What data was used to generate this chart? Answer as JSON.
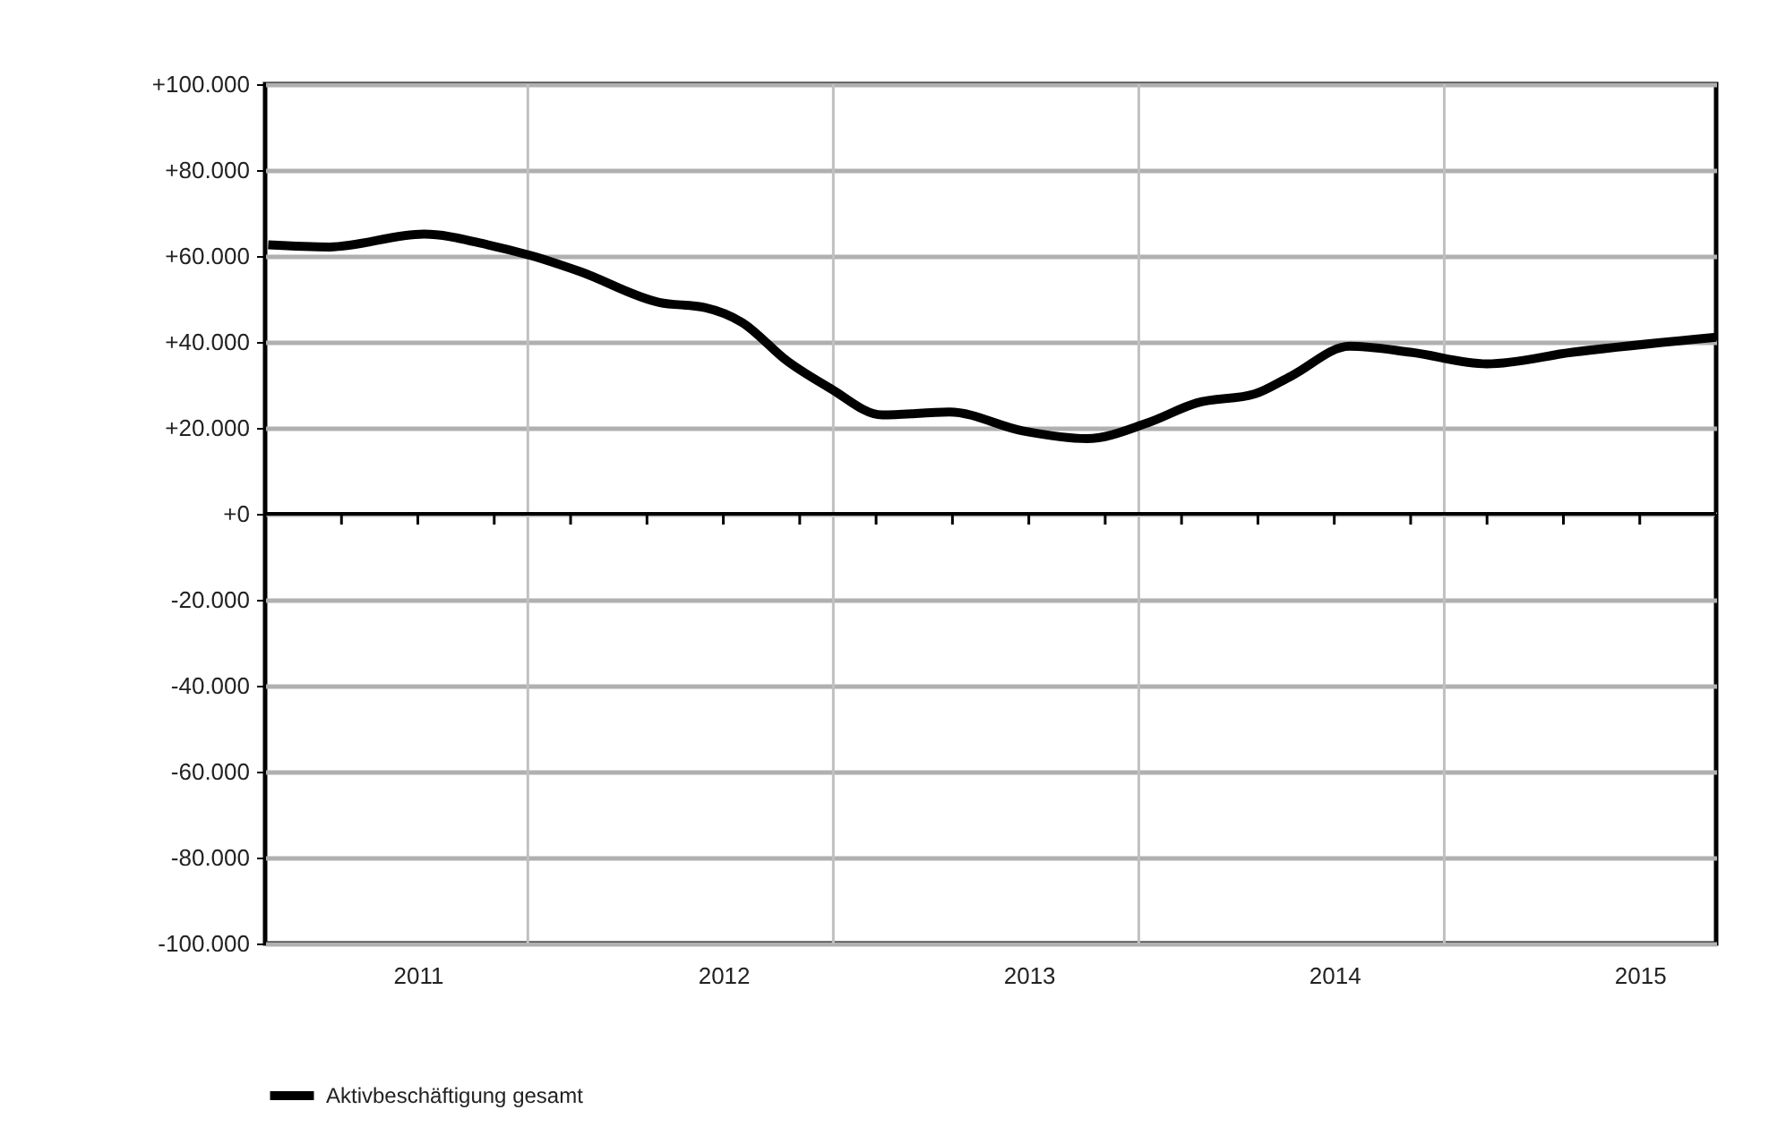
{
  "chart_data": {
    "type": "line",
    "x": [
      2011.01,
      2011.21,
      2011.52,
      2011.73,
      2011.87,
      2012.03,
      2012.29,
      2012.44,
      2012.56,
      2012.71,
      2012.85,
      2013.02,
      2013.24,
      2013.48,
      2013.69,
      2013.89,
      2014.05,
      2014.24,
      2014.36,
      2014.55,
      2014.75,
      2015.0,
      2015.28,
      2015.75
    ],
    "series": [
      {
        "name": "Aktivbeschäftigung gesamt",
        "color": "#000000",
        "values": [
          62600,
          62100,
          65100,
          62600,
          60100,
          56400,
          49200,
          48000,
          44600,
          35500,
          29200,
          23000,
          23700,
          19300,
          17500,
          21200,
          25800,
          27900,
          32100,
          39000,
          37600,
          34900,
          37600,
          41100
        ]
      }
    ],
    "xlim": [
      2011,
      2015.75
    ],
    "xticks": [
      {
        "value": 2011,
        "label": null
      },
      {
        "value": 2011.25,
        "label": null
      },
      {
        "value": 2011.5,
        "label": "2011"
      },
      {
        "value": 2011.75,
        "label": null
      },
      {
        "value": 2012,
        "label": null
      },
      {
        "value": 2012.25,
        "label": null
      },
      {
        "value": 2012.5,
        "label": "2012"
      },
      {
        "value": 2012.75,
        "label": null
      },
      {
        "value": 2013,
        "label": null
      },
      {
        "value": 2013.25,
        "label": null
      },
      {
        "value": 2013.5,
        "label": "2013"
      },
      {
        "value": 2013.75,
        "label": null
      },
      {
        "value": 2014,
        "label": null
      },
      {
        "value": 2014.25,
        "label": null
      },
      {
        "value": 2014.5,
        "label": "2014"
      },
      {
        "value": 2014.75,
        "label": null
      },
      {
        "value": 2015,
        "label": null
      },
      {
        "value": 2015.25,
        "label": null
      },
      {
        "value": 2015.5,
        "label": "2015"
      },
      {
        "value": 2015.75,
        "label": null
      }
    ],
    "ylim": [
      -100000,
      100000
    ],
    "yticks": [
      {
        "value": -100000,
        "label": "-100.000"
      },
      {
        "value": -80000,
        "label": "-80.000"
      },
      {
        "value": -60000,
        "label": "-60.000"
      },
      {
        "value": -40000,
        "label": "-40.000"
      },
      {
        "value": -20000,
        "label": "-20.000"
      },
      {
        "value": 0,
        "label": "+0"
      },
      {
        "value": 20000,
        "label": "+20.000"
      },
      {
        "value": 40000,
        "label": "+40.000"
      },
      {
        "value": 60000,
        "label": "+60.000"
      },
      {
        "value": 80000,
        "label": "+80.000"
      },
      {
        "value": 100000,
        "label": "+100.000"
      }
    ],
    "ref_lines": [
      {
        "axis": "x",
        "value": 2011.86,
        "label": null,
        "color": "#c0c0c0"
      },
      {
        "axis": "x",
        "value": 2012.86,
        "label": null,
        "color": "#c0c0c0"
      },
      {
        "axis": "x",
        "value": 2013.86,
        "label": null,
        "color": "#c0c0c0"
      },
      {
        "axis": "x",
        "value": 2014.86,
        "label": null,
        "color": "#c0c0c0"
      }
    ],
    "grid": "y",
    "legend": "bottom",
    "marker": "none",
    "line_style": "solid"
  }
}
